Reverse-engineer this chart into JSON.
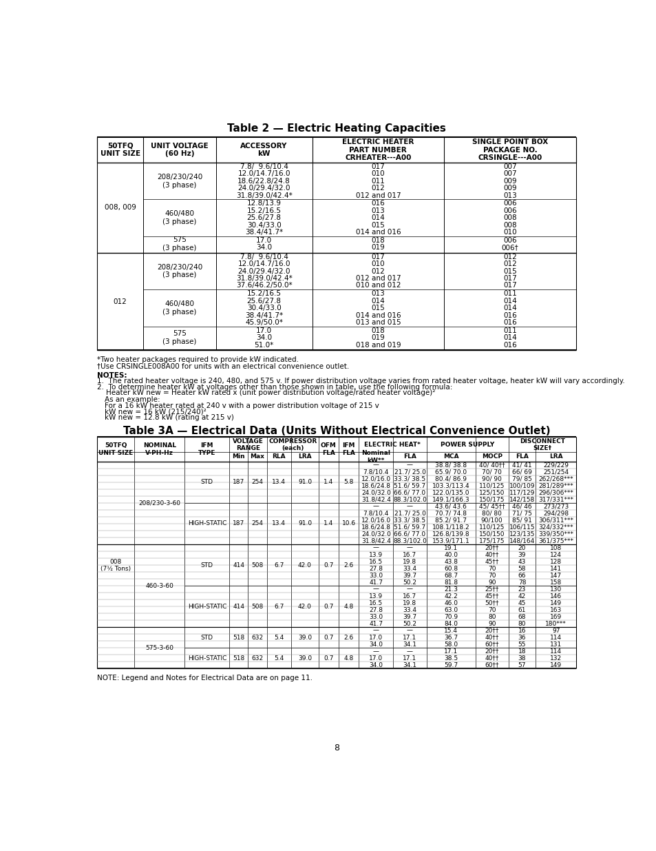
{
  "title1": "Table 2 — Electric Heating Capacities",
  "title2": "Table 3A — Electrical Data (Units Without Electrical Convenience Outlet)",
  "t2_headers": [
    "50TFQ\nUNIT SIZE",
    "UNIT VOLTAGE\n(60 Hz)",
    "ACCESSORY\nkW",
    "ELECTRIC HEATER\nPART NUMBER\nCRHEATER---A00",
    "SINGLE POINT BOX\nPACKAGE NO.\nCRSINGLE---A00"
  ],
  "footnote1": "*Two heater packages required to provide kW indicated.",
  "footnote2": "†Use CRSINGLE008A00 for units with an electrical convenience outlet.",
  "notes_header": "NOTES:",
  "note1": "1.  The rated heater voltage is 240, 480, and 575 v. If power distribution voltage varies from rated heater voltage, heater kW will vary accordingly.",
  "note2": "2.  To determine heater kW at voltages other than those shown in table, use the following formula:",
  "note2a": "    Heater kW new = Heater kW rated x (unit power distribution voltage/rated heater voltage)²",
  "note2b": "    As an example:",
  "note2c": "    For a 16 kW heater rated at 240 v with a power distribution voltage of 215 v",
  "note2d": "    kW new = 16 kW (215/240)²",
  "note2e": "    kW new = 12.8 kW (rating at 215 v)",
  "note3": "NOTE: Legend and Notes for Electrical Data are on page 11.",
  "page_num": "8"
}
